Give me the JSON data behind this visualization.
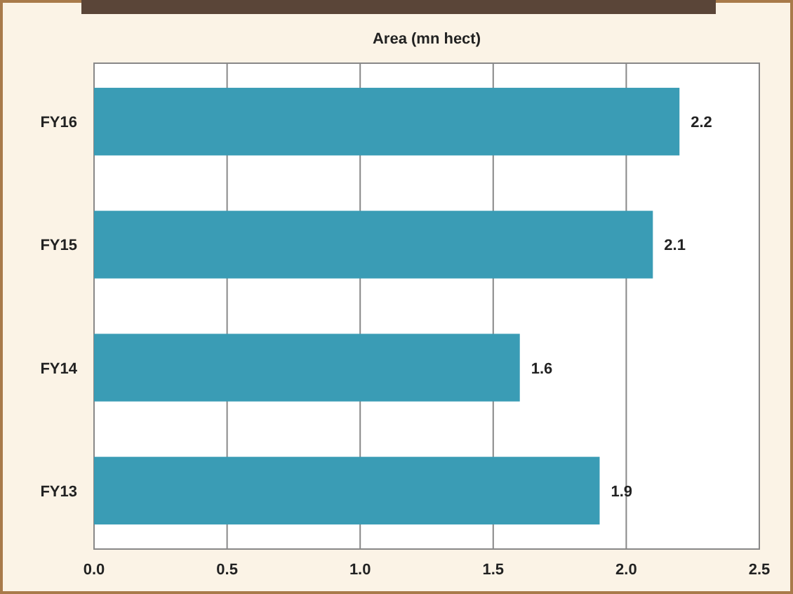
{
  "chart_data": {
    "type": "bar",
    "orientation": "horizontal",
    "title": "Area (mn hect)",
    "categories": [
      "FY16",
      "FY15",
      "FY14",
      "FY13"
    ],
    "values": [
      2.2,
      2.1,
      1.6,
      1.9
    ],
    "color": "#3a9cb5",
    "xlim": [
      0,
      2.5
    ],
    "xticks": [
      {
        "value": 0,
        "label": "0.0"
      },
      {
        "value": 0.5,
        "label": "0.5"
      },
      {
        "value": 1,
        "label": "1.0"
      },
      {
        "value": 1.5,
        "label": "1.5"
      },
      {
        "value": 2,
        "label": "2.0"
      },
      {
        "value": 2.5,
        "label": "2.5"
      }
    ],
    "grid": "x",
    "data_labels": true
  }
}
